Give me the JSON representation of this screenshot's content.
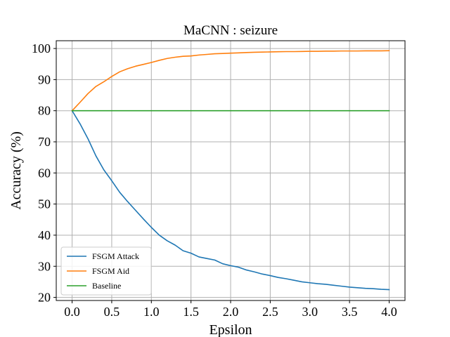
{
  "chart_data": {
    "type": "line",
    "title": "MaCNN : seizure",
    "xlabel": "Epsilon",
    "ylabel": "Accuracy (%)",
    "xlim": [
      -0.2,
      4.2
    ],
    "ylim": [
      19,
      102.5
    ],
    "xticks": [
      0.0,
      0.5,
      1.0,
      1.5,
      2.0,
      2.5,
      3.0,
      3.5,
      4.0
    ],
    "xtick_labels": [
      "0.0",
      "0.5",
      "1.0",
      "1.5",
      "2.0",
      "2.5",
      "3.0",
      "3.5",
      "4.0"
    ],
    "yticks": [
      20,
      30,
      40,
      50,
      60,
      70,
      80,
      90,
      100
    ],
    "ytick_labels": [
      "20",
      "30",
      "40",
      "50",
      "60",
      "70",
      "80",
      "90",
      "100"
    ],
    "grid": true,
    "legend_position": "lower-left",
    "x": [
      0.0,
      0.1,
      0.2,
      0.3,
      0.4,
      0.5,
      0.6,
      0.7,
      0.8,
      0.9,
      1.0,
      1.1,
      1.2,
      1.3,
      1.4,
      1.5,
      1.6,
      1.7,
      1.8,
      1.9,
      2.0,
      2.1,
      2.2,
      2.3,
      2.4,
      2.5,
      2.6,
      2.7,
      2.8,
      2.9,
      3.0,
      3.1,
      3.2,
      3.3,
      3.4,
      3.5,
      3.6,
      3.7,
      3.8,
      3.9,
      4.0
    ],
    "series": [
      {
        "name": "FSGM Attack",
        "color": "#1f77b4",
        "values": [
          80.0,
          75.8,
          71.0,
          65.5,
          61.0,
          57.5,
          53.8,
          50.8,
          48.0,
          45.2,
          42.5,
          40.0,
          38.2,
          36.8,
          35.0,
          34.2,
          33.0,
          32.5,
          32.0,
          30.8,
          30.2,
          29.7,
          28.8,
          28.2,
          27.5,
          27.0,
          26.4,
          26.0,
          25.5,
          25.0,
          24.7,
          24.4,
          24.2,
          23.9,
          23.6,
          23.3,
          23.1,
          22.9,
          22.8,
          22.6,
          22.5
        ]
      },
      {
        "name": "FSGM Aid",
        "color": "#ff7f0e",
        "values": [
          80.0,
          82.7,
          85.5,
          87.8,
          89.3,
          91.0,
          92.5,
          93.5,
          94.3,
          94.9,
          95.5,
          96.2,
          96.8,
          97.2,
          97.5,
          97.6,
          97.9,
          98.1,
          98.3,
          98.4,
          98.5,
          98.6,
          98.7,
          98.8,
          98.85,
          98.9,
          98.95,
          99.0,
          99.0,
          99.05,
          99.1,
          99.1,
          99.15,
          99.15,
          99.2,
          99.2,
          99.2,
          99.25,
          99.25,
          99.25,
          99.3
        ]
      },
      {
        "name": "Baseline",
        "color": "#2ca02c",
        "values": [
          80,
          80,
          80,
          80,
          80,
          80,
          80,
          80,
          80,
          80,
          80,
          80,
          80,
          80,
          80,
          80,
          80,
          80,
          80,
          80,
          80,
          80,
          80,
          80,
          80,
          80,
          80,
          80,
          80,
          80,
          80,
          80,
          80,
          80,
          80,
          80,
          80,
          80,
          80,
          80,
          80
        ]
      }
    ]
  }
}
